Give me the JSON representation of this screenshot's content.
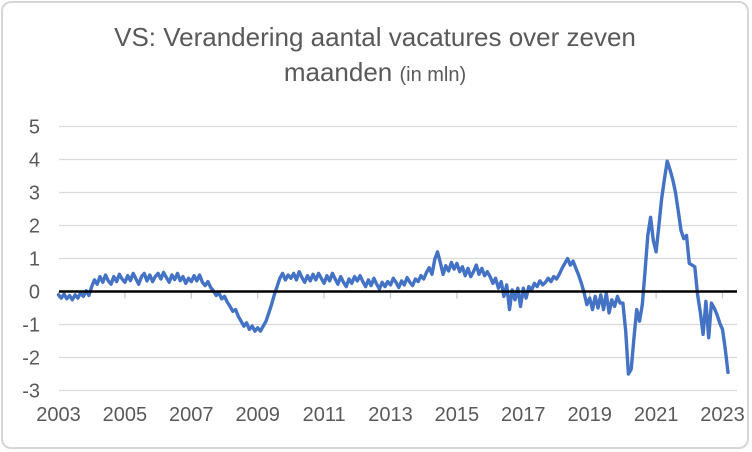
{
  "title": {
    "line1": "VS: Verandering aantal vacatures over zeven",
    "line2": "maanden",
    "suffix": "(in mln)"
  },
  "colors": {
    "series": "#4472C4",
    "gridline": "#D9D9D9",
    "tick": "#C9C9C9",
    "zero_line": "#000000",
    "text": "#595959",
    "frame_border": "#D6D6D6",
    "background": "#FFFFFF"
  },
  "chart_data": {
    "type": "line",
    "title": "VS: Verandering aantal vacatures over zeven maanden (in mln)",
    "xlabel": "",
    "ylabel": "",
    "ylim": [
      -3,
      5
    ],
    "x_range_years": [
      2003,
      2023.25
    ],
    "grid": true,
    "legend": "none",
    "zero_axis_emphasized": true,
    "y_tick_labels": [
      "5",
      "4",
      "3",
      "2",
      "1",
      "0",
      "-1",
      "-2",
      "-3"
    ],
    "x_tick_labels": [
      "2003",
      "2005",
      "2007",
      "2009",
      "2011",
      "2013",
      "2015",
      "2017",
      "2019",
      "2021",
      "2023"
    ],
    "series": [
      {
        "name": "verandering-aantal-vacatures-7-maanden",
        "color": "#4472C4",
        "start_year": 2003,
        "points_per_year": 12,
        "values": [
          -0.1,
          -0.2,
          -0.08,
          -0.22,
          -0.12,
          -0.25,
          -0.1,
          -0.2,
          -0.05,
          -0.15,
          0.02,
          -0.12,
          0.15,
          0.35,
          0.22,
          0.45,
          0.28,
          0.5,
          0.32,
          0.22,
          0.45,
          0.3,
          0.52,
          0.38,
          0.28,
          0.48,
          0.33,
          0.55,
          0.38,
          0.22,
          0.45,
          0.55,
          0.32,
          0.5,
          0.3,
          0.45,
          0.55,
          0.38,
          0.58,
          0.42,
          0.28,
          0.5,
          0.36,
          0.55,
          0.33,
          0.45,
          0.25,
          0.4,
          0.3,
          0.48,
          0.32,
          0.5,
          0.28,
          0.18,
          0.3,
          0.12,
          0.02,
          -0.12,
          -0.05,
          -0.22,
          -0.15,
          -0.32,
          -0.45,
          -0.6,
          -0.55,
          -0.75,
          -0.9,
          -1.05,
          -0.95,
          -1.15,
          -1.05,
          -1.2,
          -1.1,
          -1.2,
          -1.05,
          -0.9,
          -0.65,
          -0.4,
          -0.1,
          0.15,
          0.4,
          0.55,
          0.35,
          0.5,
          0.4,
          0.55,
          0.35,
          0.6,
          0.42,
          0.28,
          0.48,
          0.32,
          0.52,
          0.35,
          0.55,
          0.4,
          0.25,
          0.48,
          0.32,
          0.55,
          0.38,
          0.22,
          0.45,
          0.28,
          0.15,
          0.38,
          0.25,
          0.45,
          0.32,
          0.48,
          0.3,
          0.15,
          0.35,
          0.18,
          0.4,
          0.22,
          0.08,
          0.28,
          0.15,
          0.3,
          0.2,
          0.4,
          0.28,
          0.12,
          0.32,
          0.2,
          0.42,
          0.28,
          0.18,
          0.38,
          0.3,
          0.48,
          0.38,
          0.58,
          0.72,
          0.52,
          0.98,
          1.2,
          0.88,
          0.52,
          0.78,
          0.62,
          0.88,
          0.68,
          0.85,
          0.6,
          0.75,
          0.48,
          0.7,
          0.45,
          0.6,
          0.8,
          0.52,
          0.7,
          0.48,
          0.6,
          0.45,
          0.25,
          0.4,
          0.1,
          0.3,
          -0.15,
          0.2,
          -0.55,
          0.05,
          -0.25,
          0.1,
          -0.45,
          0.1,
          -0.2,
          0.15,
          0.05,
          0.25,
          0.15,
          0.32,
          0.2,
          0.28,
          0.4,
          0.3,
          0.45,
          0.38,
          0.52,
          0.7,
          0.85,
          1.0,
          0.8,
          0.92,
          0.7,
          0.5,
          0.25,
          -0.05,
          -0.4,
          -0.2,
          -0.55,
          -0.15,
          -0.5,
          -0.1,
          -0.55,
          -0.05,
          -0.65,
          -0.25,
          -0.45,
          -0.15,
          -0.35,
          -0.35,
          -1.2,
          -2.5,
          -2.35,
          -1.4,
          -0.55,
          -0.9,
          -0.4,
          0.6,
          1.7,
          2.25,
          1.55,
          1.2,
          2.0,
          2.8,
          3.4,
          3.95,
          3.7,
          3.4,
          3.0,
          2.45,
          1.85,
          1.6,
          1.7,
          0.85,
          0.8,
          0.75,
          -0.1,
          -0.65,
          -1.3,
          -0.3,
          -1.4,
          -0.35,
          -0.5,
          -0.7,
          -0.95,
          -1.15,
          -1.75,
          -2.45
        ]
      }
    ]
  }
}
